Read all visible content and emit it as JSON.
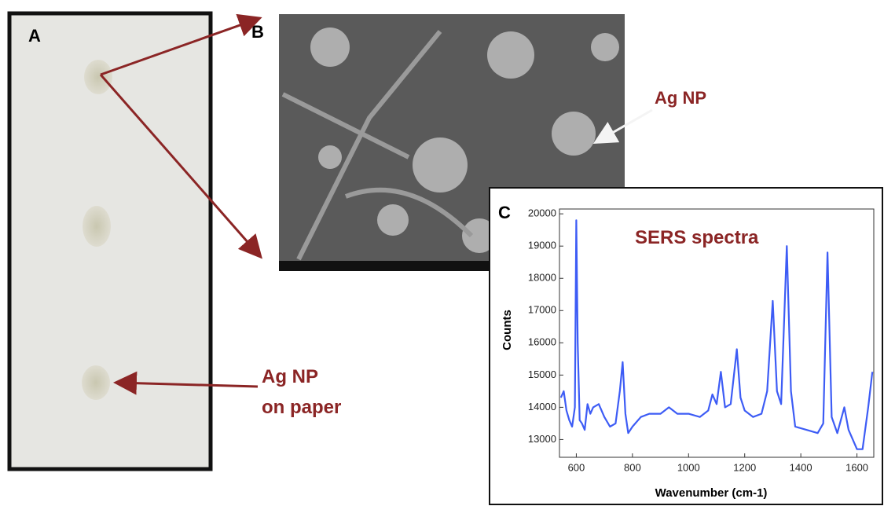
{
  "panels": {
    "a": {
      "label": "A",
      "caption": [
        "Ag NP",
        "on paper"
      ]
    },
    "b": {
      "label": "B",
      "annotation": "Ag NP"
    },
    "c": {
      "label": "C"
    }
  },
  "chart_data": {
    "type": "line",
    "annotation": "SERS spectra",
    "xlabel": "Wavenumber (cm-1)",
    "ylabel": "Counts",
    "color": "#3d5cf5",
    "x": [
      545,
      555,
      565,
      575,
      585,
      595,
      600,
      605,
      612,
      620,
      630,
      640,
      650,
      660,
      680,
      700,
      720,
      740,
      755,
      765,
      775,
      785,
      800,
      830,
      860,
      900,
      930,
      960,
      1000,
      1040,
      1070,
      1085,
      1100,
      1115,
      1130,
      1150,
      1172,
      1185,
      1200,
      1230,
      1260,
      1280,
      1300,
      1315,
      1330,
      1350,
      1365,
      1380,
      1420,
      1460,
      1480,
      1495,
      1510,
      1530,
      1555,
      1570,
      1600,
      1620,
      1640,
      1655
    ],
    "values": [
      14300,
      14500,
      13900,
      13600,
      13400,
      14000,
      19800,
      16000,
      13600,
      13500,
      13300,
      14100,
      13800,
      14000,
      14100,
      13700,
      13400,
      13500,
      14500,
      15400,
      13800,
      13200,
      13400,
      13700,
      13800,
      13800,
      14000,
      13800,
      13800,
      13700,
      13900,
      14400,
      14100,
      15100,
      14000,
      14100,
      15800,
      14300,
      13900,
      13700,
      13800,
      14500,
      17300,
      14500,
      14100,
      19000,
      14500,
      13400,
      13300,
      13200,
      13500,
      18800,
      13700,
      13200,
      14000,
      13300,
      12700,
      12700,
      14000,
      15100
    ],
    "xlim": [
      540,
      1660
    ],
    "ylim": [
      12450,
      20150
    ],
    "xticks": [
      600,
      800,
      1000,
      1200,
      1400,
      1600
    ],
    "yticks": [
      13000,
      14000,
      15000,
      16000,
      17000,
      18000,
      19000,
      20000
    ]
  }
}
